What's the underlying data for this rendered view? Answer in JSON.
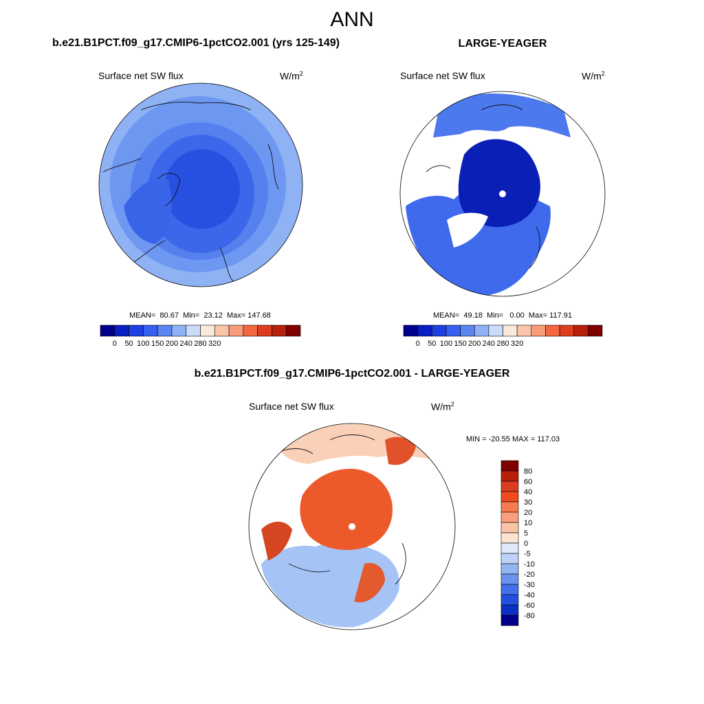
{
  "page_title": "ANN",
  "panels": {
    "model": {
      "title": "b.e21.B1PCT.f09_g17.CMIP6-1pctCO2.001 (yrs 125-149)",
      "variable": "Surface net SW flux",
      "units_base": "W/m",
      "units_exp": "2",
      "stats": {
        "mean_label": "MEAN=",
        "mean": "80.67",
        "min_label": "Min=",
        "min": "23.12",
        "max_label": "Max=",
        "max": "147.68"
      }
    },
    "obs": {
      "title": "LARGE-YEAGER",
      "variable": "Surface net SW flux",
      "units_base": "W/m",
      "units_exp": "2",
      "stats": {
        "mean_label": "MEAN=",
        "mean": "49.18",
        "min_label": "Min=",
        "min": "0.00",
        "max_label": "Max=",
        "max": "117.91"
      }
    },
    "diff": {
      "title": "b.e21.B1PCT.f09_g17.CMIP6-1pctCO2.001 - LARGE-YEAGER",
      "variable": "Surface net SW flux",
      "units_base": "W/m",
      "units_exp": "2",
      "minmax": "MIN = -20.55 MAX = 117.03"
    }
  },
  "chart_data": [
    {
      "type": "heatmap",
      "projection": "north polar stereographic",
      "title": "b.e21.B1PCT.f09_g17.CMIP6-1pctCO2.001 (yrs 125-149)",
      "variable": "Surface net SW flux",
      "units": "W/m2",
      "mean": 80.67,
      "min": 23.12,
      "max": 147.68,
      "colorbar_ticks": [
        0,
        50,
        100,
        150,
        200,
        240,
        280,
        320
      ],
      "colorbar_colors": [
        "#00008b",
        "#0a1fc2",
        "#1f3fe0",
        "#3660ef",
        "#5a85f2",
        "#8fb1f5",
        "#c9dcf9",
        "#fde9dc",
        "#fbc4a8",
        "#f89b78",
        "#f2673f",
        "#dc3d1e",
        "#b7210b",
        "#800000"
      ]
    },
    {
      "type": "heatmap",
      "projection": "north polar stereographic",
      "title": "LARGE-YEAGER",
      "variable": "Surface net SW flux",
      "units": "W/m2",
      "mean": 49.18,
      "min": 0.0,
      "max": 117.91,
      "colorbar_ticks": [
        0,
        50,
        100,
        150,
        200,
        240,
        280,
        320
      ],
      "colorbar_colors": [
        "#00008b",
        "#0a1fc2",
        "#1f3fe0",
        "#3660ef",
        "#5a85f2",
        "#8fb1f5",
        "#c9dcf9",
        "#fde9dc",
        "#fbc4a8",
        "#f89b78",
        "#f2673f",
        "#dc3d1e",
        "#b7210b",
        "#800000"
      ]
    },
    {
      "type": "heatmap",
      "projection": "north polar stereographic",
      "title": "b.e21.B1PCT.f09_g17.CMIP6-1pctCO2.001 - LARGE-YEAGER",
      "variable": "Surface net SW flux",
      "units": "W/m2",
      "min": -20.55,
      "max": 117.03,
      "colorbar_ticks": [
        80,
        60,
        40,
        30,
        20,
        10,
        5,
        0,
        -5,
        -10,
        -20,
        -30,
        -40,
        -60,
        -80
      ],
      "colorbar_colors": [
        "#800000",
        "#b7210b",
        "#dc3d1e",
        "#f04a1f",
        "#f67b4f",
        "#f99f7c",
        "#fbc2a6",
        "#fde3d2",
        "#dde9fb",
        "#bcd3f7",
        "#92b5f4",
        "#6a93f0",
        "#4470ec",
        "#2350e0",
        "#0c2fc4",
        "#00008b"
      ]
    }
  ]
}
